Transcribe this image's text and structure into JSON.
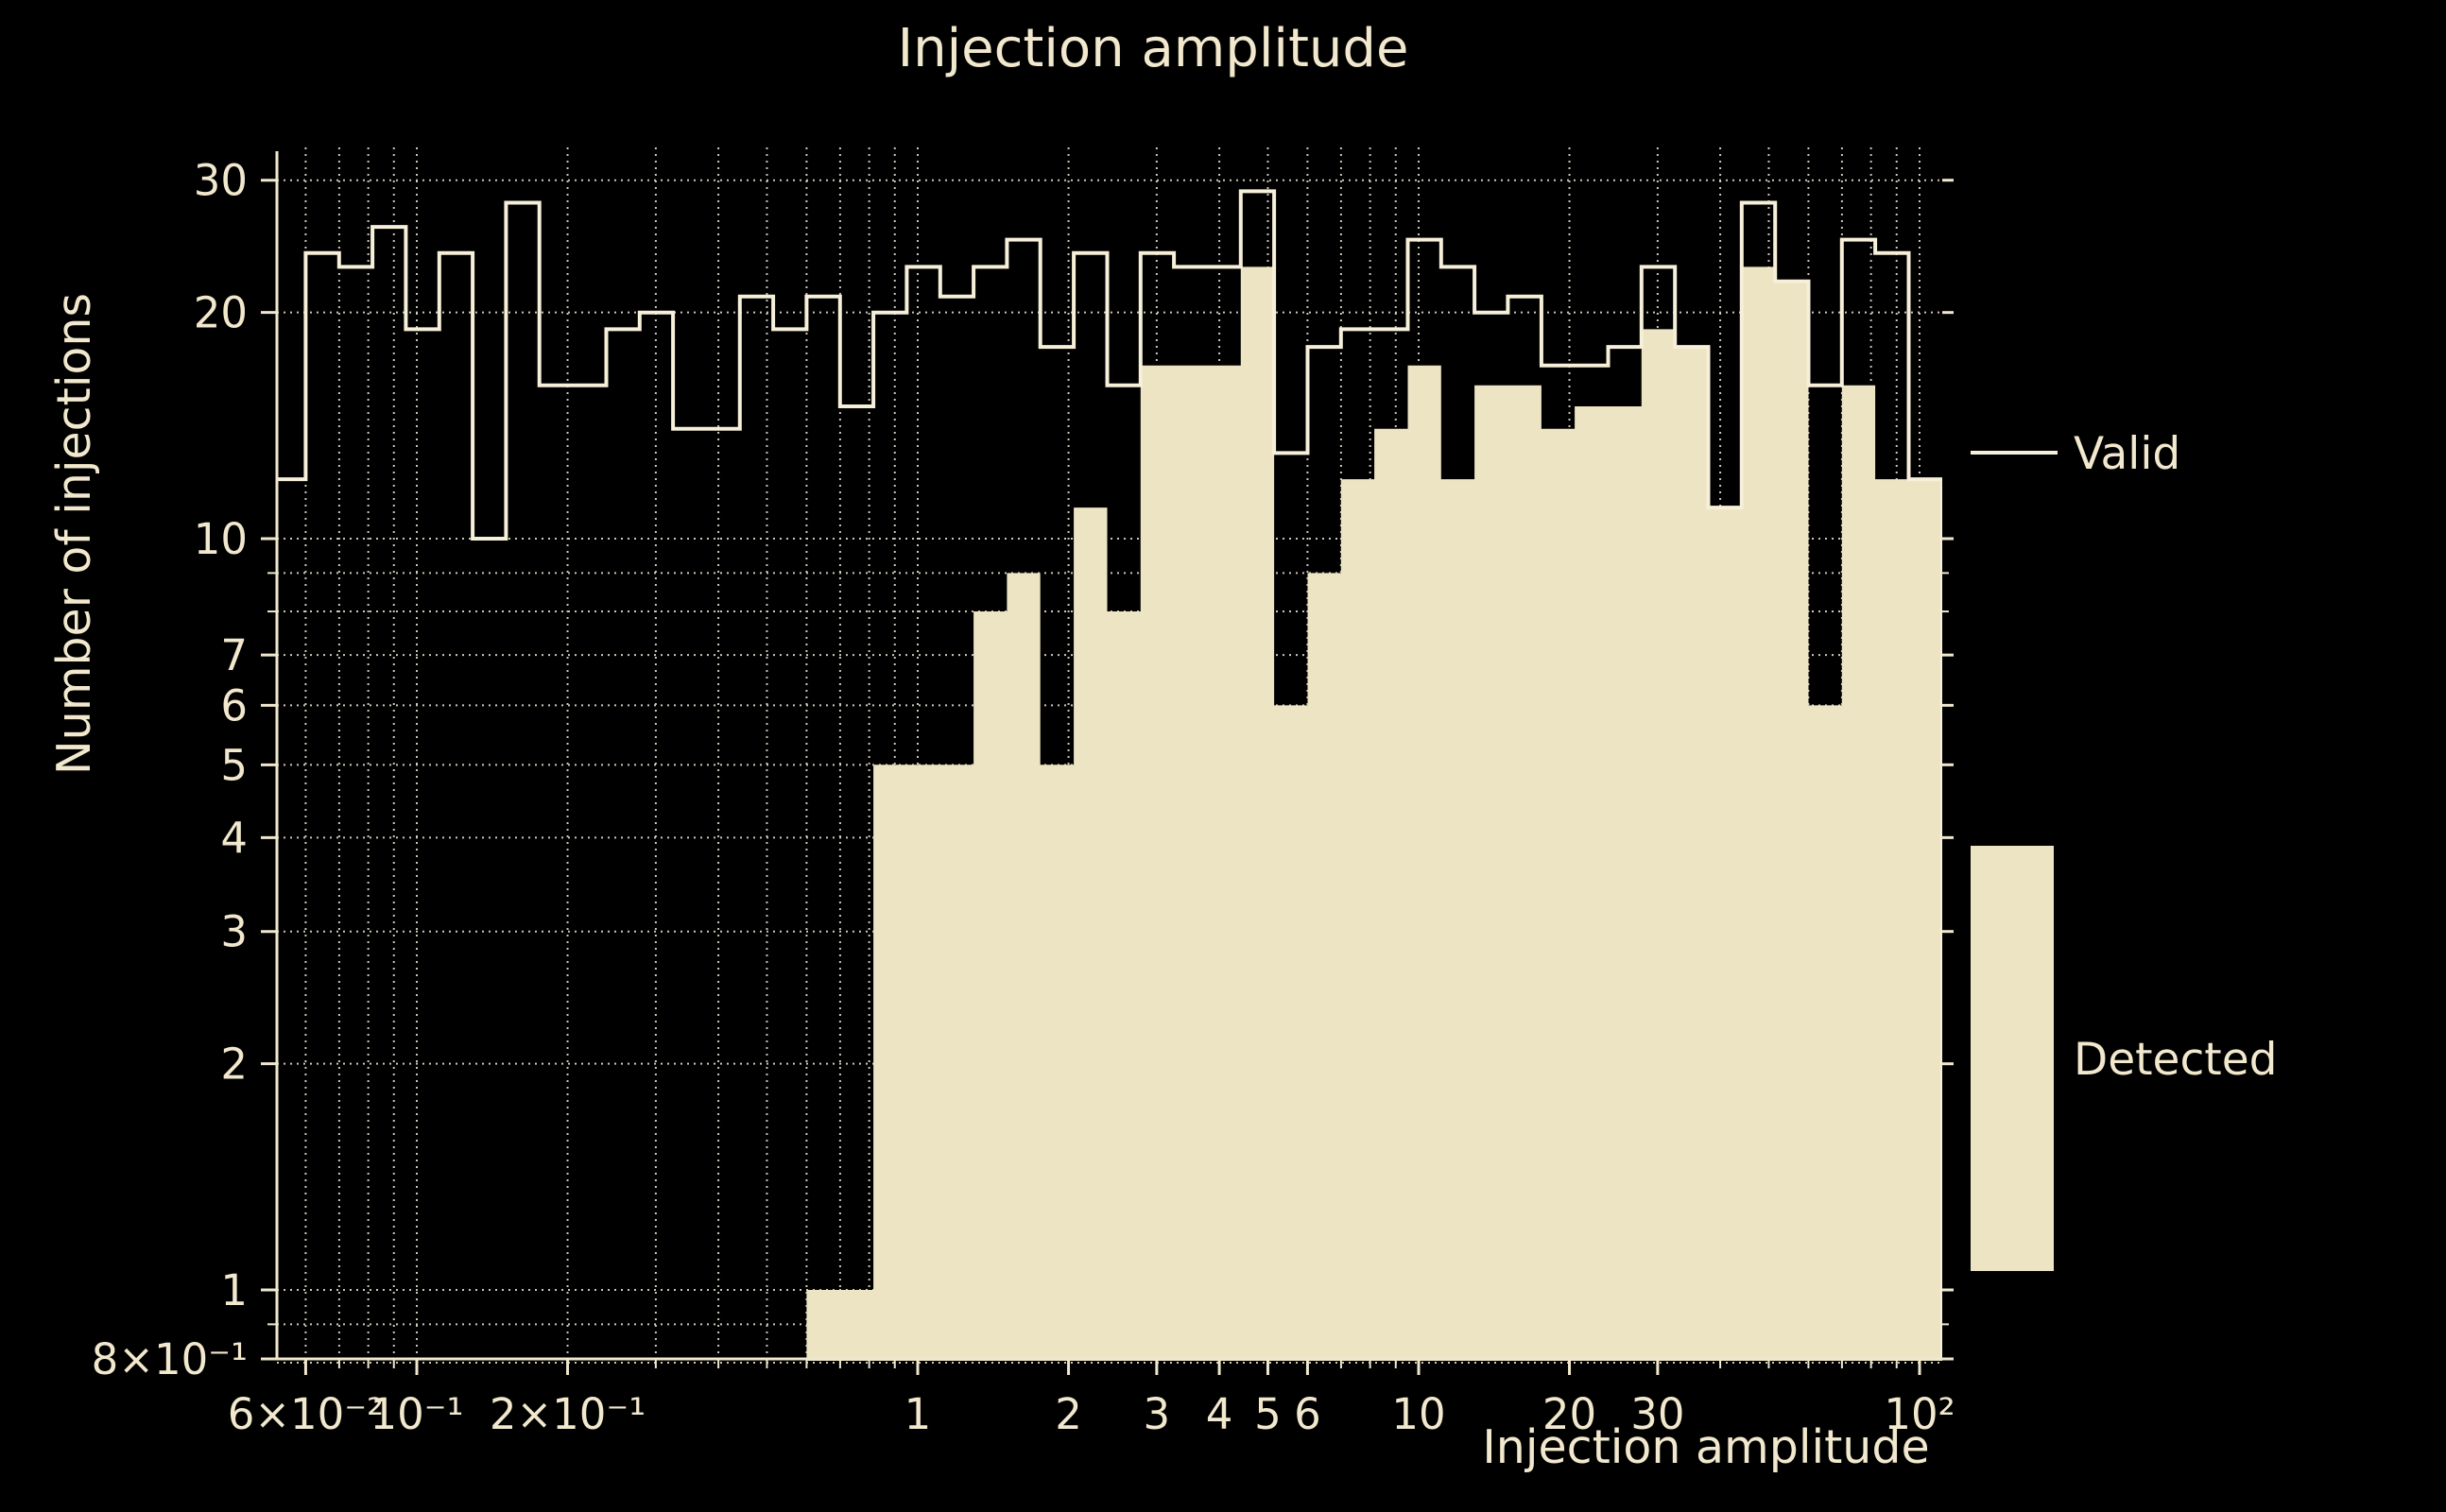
{
  "colors": {
    "background": "#000000",
    "detected_fill": "#EDE4C3",
    "valid_line": "#F6EFD9",
    "spine": "#EFE7CE",
    "grid": "#D8D2C2",
    "text": "#F1E8CD"
  },
  "legend": {
    "valid_label": "Valid",
    "detected_label": "Detected"
  },
  "chart_data": {
    "type": "bar",
    "subtype": "log-log step histogram, two series",
    "title": "Injection amplitude",
    "xlabel": "Injection amplitude",
    "ylabel": "Number of injections",
    "xlim": [
      0.0526,
      110.9
    ],
    "ylim": [
      0.8,
      32.8
    ],
    "x_scale": "log",
    "y_scale": "log",
    "grid": "dotted, major and minor, both axes",
    "legend_position": "right of plot",
    "bin_edges": [
      0.0514,
      0.06,
      0.06996,
      0.08156,
      0.09509,
      0.1109,
      0.1293,
      0.1507,
      0.1757,
      0.2049,
      0.2389,
      0.2785,
      0.3247,
      0.3786,
      0.4414,
      0.5147,
      0.6,
      0.6996,
      0.8157,
      0.951,
      1.109,
      1.293,
      1.507,
      1.757,
      2.049,
      2.389,
      2.785,
      3.247,
      3.786,
      4.414,
      5.147,
      6.001,
      6.997,
      8.157,
      9.511,
      11.09,
      12.93,
      15.07,
      17.58,
      20.49,
      23.89,
      27.86,
      32.48,
      37.87,
      44.15,
      51.48,
      60.02,
      69.97,
      81.58,
      95.12,
      110.9
    ],
    "series": [
      {
        "name": "Valid",
        "style": "step outline",
        "values": [
          12,
          24,
          23,
          26,
          19,
          24,
          10,
          28,
          16,
          16,
          19,
          20,
          14,
          14,
          21,
          19,
          21,
          15,
          20,
          23,
          21,
          23,
          25,
          18,
          24,
          16,
          24,
          23,
          23,
          29,
          13,
          18,
          19,
          19,
          25,
          23,
          20,
          21,
          17,
          17,
          18,
          23,
          18,
          11,
          28,
          22,
          16,
          25,
          24,
          12
        ]
      },
      {
        "name": "Detected",
        "style": "filled steps",
        "values": [
          0,
          0,
          0,
          0,
          0,
          0,
          0,
          0,
          0,
          0,
          0,
          0,
          0,
          0,
          0,
          0,
          1,
          1,
          5,
          5,
          5,
          8,
          9,
          5,
          11,
          8,
          17,
          17,
          17,
          23,
          6,
          9,
          12,
          14,
          17,
          12,
          16,
          16,
          14,
          15,
          15,
          19,
          18,
          11,
          23,
          22,
          6,
          16,
          12,
          12
        ]
      }
    ],
    "x_major_ticks": [
      {
        "v": 0.06,
        "label": "6×10⁻²"
      },
      {
        "v": 0.1,
        "label": "10⁻¹"
      },
      {
        "v": 0.2,
        "label": "2×10⁻¹"
      },
      {
        "v": 1,
        "label": "1"
      },
      {
        "v": 2,
        "label": "2"
      },
      {
        "v": 3,
        "label": "3"
      },
      {
        "v": 4,
        "label": "4"
      },
      {
        "v": 5,
        "label": "5"
      },
      {
        "v": 6,
        "label": "6"
      },
      {
        "v": 10,
        "label": "10"
      },
      {
        "v": 20,
        "label": "20"
      },
      {
        "v": 30,
        "label": "30"
      },
      {
        "v": 100,
        "label": "10²"
      }
    ],
    "x_minor_ticks": [
      0.07,
      0.08,
      0.09,
      0.3,
      0.4,
      0.5,
      0.6,
      0.7,
      0.8,
      0.9,
      7,
      8,
      9,
      40,
      50,
      60,
      70,
      80,
      90
    ],
    "y_major_ticks": [
      {
        "v": 0.8,
        "label": "8×10⁻¹"
      },
      {
        "v": 1,
        "label": "1"
      },
      {
        "v": 2,
        "label": "2"
      },
      {
        "v": 3,
        "label": "3"
      },
      {
        "v": 4,
        "label": "4"
      },
      {
        "v": 5,
        "label": "5"
      },
      {
        "v": 6,
        "label": "6"
      },
      {
        "v": 7,
        "label": "7"
      },
      {
        "v": 10,
        "label": "10"
      },
      {
        "v": 20,
        "label": "20"
      },
      {
        "v": 30,
        "label": "30"
      }
    ],
    "y_minor_ticks": [
      0.9,
      8,
      9
    ]
  }
}
